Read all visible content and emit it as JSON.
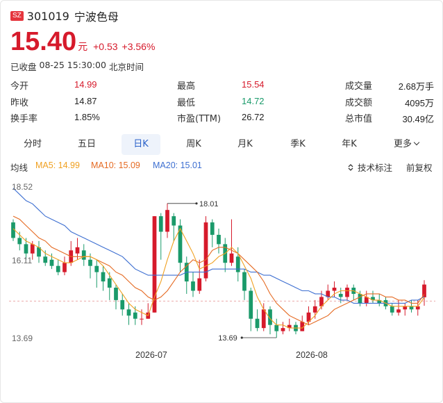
{
  "header": {
    "market_badge": "SZ",
    "code": "301019",
    "name": "宁波色母"
  },
  "quote": {
    "price": "15.40",
    "unit": "元",
    "change": "+0.53",
    "change_pct": "+3.56%",
    "status": "已收盘",
    "datetime": "08-25 15:30:00",
    "timezone": "北京时间"
  },
  "stats": [
    {
      "label": "今开",
      "value": "14.99",
      "color": "red"
    },
    {
      "label": "最高",
      "value": "15.54",
      "color": "red"
    },
    {
      "label": "成交量",
      "value": "2.68万手",
      "color": ""
    },
    {
      "label": "昨收",
      "value": "14.87",
      "color": ""
    },
    {
      "label": "最低",
      "value": "14.72",
      "color": "green"
    },
    {
      "label": "成交额",
      "value": "4095万",
      "color": ""
    },
    {
      "label": "换手率",
      "value": "1.85%",
      "color": ""
    },
    {
      "label": "市盈(TTM)",
      "value": "26.72",
      "color": ""
    },
    {
      "label": "总市值",
      "value": "30.49亿",
      "color": ""
    }
  ],
  "tabs": [
    "分时",
    "五日",
    "日K",
    "周K",
    "月K",
    "季K",
    "年K",
    "更多"
  ],
  "active_tab": "日K",
  "ma": {
    "title": "均线",
    "ma5": "MA5: 14.99",
    "ma10": "MA10: 15.09",
    "ma20": "MA20: 15.01"
  },
  "toolbar": {
    "tech_label": "技术标注",
    "adjust_label": "前复权"
  },
  "colors": {
    "up": "#d61a2b",
    "down": "#1a9a6a",
    "ma5": "#f0a020",
    "ma10": "#e56a22",
    "ma20": "#3d6fd1",
    "active_tab": "#2a61c9"
  },
  "chart_data": {
    "type": "candlestick",
    "y_ticks": [
      "18.52",
      "16.11",
      "13.69"
    ],
    "ylim": [
      13.69,
      18.52
    ],
    "x_ticks": [
      "2026-07",
      "2026-08"
    ],
    "annotations": {
      "high_label": "18.01",
      "low_label": "13.69"
    },
    "reference_price": 14.87,
    "candles": [
      [
        17.4,
        16.9,
        17.5,
        16.8
      ],
      [
        16.9,
        16.7,
        17.1,
        16.5
      ],
      [
        16.7,
        16.4,
        16.9,
        16.2
      ],
      [
        16.4,
        16.7,
        16.8,
        16.2
      ],
      [
        16.6,
        16.3,
        16.8,
        16.1
      ],
      [
        16.3,
        16.1,
        16.5,
        16.0
      ],
      [
        16.2,
        16.0,
        16.4,
        15.9
      ],
      [
        16.0,
        15.8,
        16.2,
        15.7
      ],
      [
        15.8,
        16.1,
        16.3,
        15.7
      ],
      [
        16.1,
        16.5,
        16.8,
        16.0
      ],
      [
        16.4,
        16.6,
        16.9,
        16.2
      ],
      [
        16.5,
        16.2,
        16.7,
        16.0
      ],
      [
        16.2,
        16.0,
        16.4,
        15.6
      ],
      [
        16.0,
        15.8,
        16.2,
        15.3
      ],
      [
        15.8,
        15.5,
        16.0,
        15.2
      ],
      [
        15.6,
        15.3,
        15.8,
        14.9
      ],
      [
        15.3,
        14.9,
        15.4,
        14.6
      ],
      [
        14.9,
        14.6,
        15.1,
        14.4
      ],
      [
        14.6,
        14.4,
        14.8,
        14.1
      ],
      [
        14.5,
        14.3,
        14.7,
        14.1
      ],
      [
        14.3,
        14.3,
        14.6,
        14.1
      ],
      [
        14.3,
        14.5,
        14.8,
        14.3
      ],
      [
        14.5,
        17.6,
        17.6,
        14.5
      ],
      [
        17.6,
        17.1,
        17.7,
        16.2
      ],
      [
        17.1,
        17.8,
        18.01,
        16.9
      ],
      [
        17.6,
        17.3,
        17.7,
        16.8
      ],
      [
        17.3,
        16.1,
        17.5,
        15.8
      ],
      [
        16.1,
        15.5,
        16.3,
        15.1
      ],
      [
        15.5,
        15.2,
        15.8,
        15.0
      ],
      [
        15.2,
        15.6,
        16.2,
        15.1
      ],
      [
        15.6,
        17.4,
        17.6,
        15.5
      ],
      [
        17.4,
        17.0,
        17.5,
        16.6
      ],
      [
        17.0,
        16.7,
        17.2,
        16.4
      ],
      [
        16.7,
        16.1,
        16.9,
        15.8
      ],
      [
        16.1,
        16.4,
        17.5,
        16.0
      ],
      [
        16.3,
        15.8,
        16.6,
        15.5
      ],
      [
        15.8,
        15.2,
        15.9,
        14.9
      ],
      [
        15.2,
        14.3,
        15.3,
        13.9
      ],
      [
        14.3,
        14.0,
        14.6,
        13.9
      ],
      [
        14.0,
        14.6,
        14.8,
        13.9
      ],
      [
        14.6,
        14.1,
        14.7,
        13.8
      ],
      [
        14.1,
        13.9,
        14.3,
        13.69
      ],
      [
        13.9,
        14.0,
        14.2,
        13.8
      ],
      [
        14.0,
        14.1,
        14.3,
        13.9
      ],
      [
        14.1,
        13.9,
        14.2,
        13.8
      ],
      [
        13.9,
        14.2,
        14.4,
        13.9
      ],
      [
        14.2,
        14.5,
        14.7,
        14.1
      ],
      [
        14.5,
        14.7,
        14.9,
        14.3
      ],
      [
        14.7,
        15.0,
        15.2,
        14.6
      ],
      [
        15.0,
        15.2,
        15.4,
        14.9
      ],
      [
        15.2,
        15.3,
        15.5,
        15.0
      ],
      [
        15.1,
        15.0,
        15.3,
        14.8
      ],
      [
        15.0,
        15.3,
        15.4,
        14.9
      ],
      [
        15.3,
        15.1,
        15.4,
        14.9
      ],
      [
        15.1,
        14.8,
        15.2,
        14.7
      ],
      [
        14.8,
        15.0,
        15.2,
        14.7
      ],
      [
        15.0,
        14.9,
        15.2,
        14.8
      ],
      [
        14.9,
        14.8,
        15.1,
        14.7
      ],
      [
        14.9,
        14.7,
        15.0,
        14.6
      ],
      [
        14.7,
        14.5,
        14.8,
        14.4
      ],
      [
        14.5,
        14.6,
        14.9,
        14.4
      ],
      [
        14.6,
        14.7,
        14.8,
        14.4
      ],
      [
        14.7,
        14.6,
        14.9,
        14.5
      ],
      [
        14.6,
        14.7,
        14.9,
        14.4
      ],
      [
        14.99,
        15.4,
        15.54,
        14.72
      ]
    ],
    "ma5": [
      17.2,
      17.0,
      16.8,
      16.7,
      16.6,
      16.4,
      16.3,
      16.2,
      16.1,
      16.1,
      16.2,
      16.3,
      16.3,
      16.2,
      16.0,
      15.7,
      15.4,
      15.1,
      14.8,
      14.6,
      14.5,
      14.4,
      15.0,
      15.5,
      16.2,
      16.8,
      17.2,
      16.8,
      16.4,
      15.9,
      16.0,
      16.1,
      16.3,
      16.4,
      16.6,
      16.4,
      16.0,
      15.6,
      15.0,
      14.6,
      14.3,
      14.1,
      14.1,
      14.0,
      14.0,
      14.0,
      14.2,
      14.4,
      14.7,
      14.9,
      15.1,
      15.2,
      15.2,
      15.2,
      15.1,
      15.0,
      14.9,
      14.9,
      14.8,
      14.7,
      14.7,
      14.7,
      14.7,
      14.7,
      14.99
    ],
    "ma10": [
      17.6,
      17.5,
      17.3,
      17.1,
      16.9,
      16.8,
      16.6,
      16.5,
      16.4,
      16.3,
      16.3,
      16.3,
      16.3,
      16.2,
      16.1,
      16.0,
      15.8,
      15.7,
      15.5,
      15.3,
      15.2,
      15.0,
      14.9,
      15.0,
      15.2,
      15.5,
      15.8,
      16.0,
      16.2,
      16.1,
      16.2,
      16.5,
      16.6,
      16.6,
      16.5,
      16.4,
      16.2,
      16.0,
      15.8,
      15.5,
      15.1,
      14.8,
      14.6,
      14.4,
      14.3,
      14.2,
      14.1,
      14.2,
      14.3,
      14.4,
      14.6,
      14.7,
      14.8,
      14.9,
      15.0,
      15.1,
      15.1,
      15.1,
      15.0,
      15.0,
      14.9,
      14.9,
      14.8,
      14.8,
      15.09
    ],
    "ma20": [
      18.5,
      18.3,
      18.1,
      18.0,
      17.8,
      17.6,
      17.5,
      17.4,
      17.3,
      17.1,
      17.0,
      16.9,
      16.8,
      16.7,
      16.6,
      16.5,
      16.4,
      16.3,
      16.1,
      15.9,
      15.8,
      15.7,
      15.7,
      15.7,
      15.7,
      15.7,
      15.7,
      15.8,
      15.8,
      15.8,
      15.8,
      15.9,
      15.9,
      15.9,
      15.9,
      15.9,
      15.9,
      15.8,
      15.8,
      15.7,
      15.7,
      15.6,
      15.5,
      15.4,
      15.3,
      15.2,
      15.2,
      15.1,
      15.1,
      15.0,
      15.0,
      14.9,
      14.9,
      14.8,
      14.8,
      14.8,
      14.8,
      14.8,
      14.8,
      14.8,
      14.8,
      14.8,
      14.9,
      14.9,
      15.01
    ]
  }
}
